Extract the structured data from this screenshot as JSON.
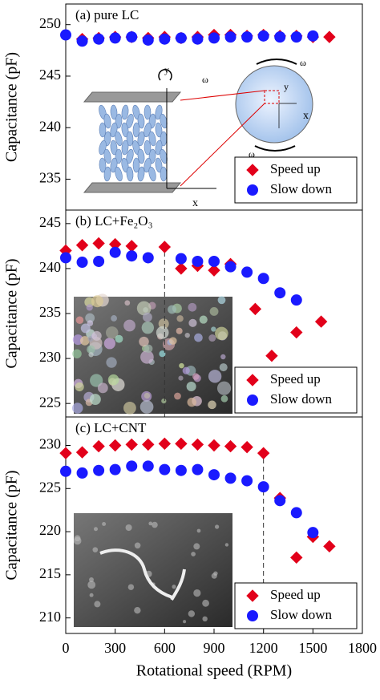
{
  "chart_data": [
    {
      "type": "scatter",
      "title": "(a)  pure LC",
      "y_label": "Capacitance (pF)",
      "xlim": [
        0,
        1800
      ],
      "ylim": [
        232,
        252
      ],
      "yticks": [
        235,
        240,
        245,
        250
      ],
      "legend": "lower right",
      "inset_labels": [
        "y",
        "ω",
        "x",
        "y",
        "x",
        "ω",
        "ω"
      ],
      "series": [
        {
          "name": "Speed up",
          "color": "#e2001a",
          "marker": "diamond",
          "x": [
            100,
            200,
            300,
            400,
            500,
            600,
            700,
            800,
            900,
            1000,
            1100,
            1200,
            1300,
            1400,
            1500,
            1600
          ],
          "values": [
            248.6,
            248.7,
            248.8,
            248.8,
            248.7,
            248.8,
            248.7,
            248.8,
            249.0,
            249.0,
            248.9,
            249.0,
            248.9,
            248.9,
            248.8,
            248.8
          ]
        },
        {
          "name": "Slow down",
          "color": "#1a1aff",
          "marker": "circle",
          "x": [
            0,
            100,
            200,
            300,
            400,
            500,
            600,
            700,
            800,
            900,
            1000,
            1100,
            1200,
            1300,
            1400,
            1500
          ],
          "values": [
            249.0,
            248.4,
            248.6,
            248.7,
            248.8,
            248.5,
            248.6,
            248.7,
            248.6,
            248.7,
            248.8,
            248.8,
            248.9,
            248.8,
            248.8,
            248.9
          ]
        }
      ]
    },
    {
      "type": "scatter",
      "title": "(b)  LC+Fe₂O₃",
      "y_label": "Capacitance (pF)",
      "xlim": [
        0,
        1800
      ],
      "ylim": [
        223.5,
        246.5
      ],
      "yticks": [
        225,
        230,
        235,
        240,
        245
      ],
      "legend": "lower right",
      "vline": 600,
      "series": [
        {
          "name": "Speed up",
          "color": "#e2001a",
          "marker": "diamond",
          "x": [
            0,
            100,
            200,
            300,
            400,
            600,
            700,
            800,
            900,
            1000,
            1150,
            1250,
            1400,
            1550
          ],
          "values": [
            242.0,
            242.6,
            242.8,
            242.7,
            242.5,
            242.4,
            240.0,
            240.3,
            239.8,
            240.5,
            235.5,
            230.3,
            232.9,
            234.1
          ]
        },
        {
          "name": "Slow down",
          "color": "#1a1aff",
          "marker": "circle",
          "x": [
            0,
            100,
            200,
            300,
            400,
            500,
            700,
            800,
            900,
            1000,
            1100,
            1200,
            1300,
            1400
          ],
          "values": [
            241.2,
            240.7,
            240.8,
            241.8,
            241.4,
            241.2,
            241.1,
            240.8,
            240.8,
            240.2,
            239.6,
            238.9,
            237.3,
            236.5
          ]
        }
      ]
    },
    {
      "type": "scatter",
      "title": "(c)  LC+CNT",
      "y_label": "Capacitance (pF)",
      "x_label": "Rotational speed (RPM)",
      "xlim": [
        0,
        1800
      ],
      "xticks": [
        0,
        300,
        600,
        900,
        1200,
        1500,
        1800
      ],
      "ylim": [
        208.2,
        233.3
      ],
      "yticks": [
        210,
        215,
        220,
        225,
        230
      ],
      "legend": "lower right",
      "vline": 1200,
      "series": [
        {
          "name": "Speed up",
          "color": "#e2001a",
          "marker": "diamond",
          "x": [
            0,
            100,
            200,
            300,
            400,
            500,
            600,
            700,
            800,
            900,
            1000,
            1100,
            1200,
            1300,
            1400,
            1500,
            1600
          ],
          "values": [
            229.1,
            229.2,
            229.9,
            230.0,
            230.1,
            230.1,
            230.2,
            230.2,
            230.1,
            230.0,
            229.9,
            229.8,
            229.1,
            223.9,
            217.0,
            219.4,
            218.3
          ]
        },
        {
          "name": "Slow down",
          "color": "#1a1aff",
          "marker": "circle",
          "x": [
            0,
            100,
            200,
            300,
            400,
            500,
            600,
            700,
            800,
            900,
            1000,
            1100,
            1200,
            1300,
            1400,
            1500
          ],
          "values": [
            227.0,
            226.8,
            227.1,
            227.2,
            227.6,
            227.6,
            227.2,
            227.1,
            227.2,
            226.6,
            226.2,
            225.9,
            225.2,
            223.6,
            222.2,
            219.9
          ]
        }
      ]
    }
  ]
}
